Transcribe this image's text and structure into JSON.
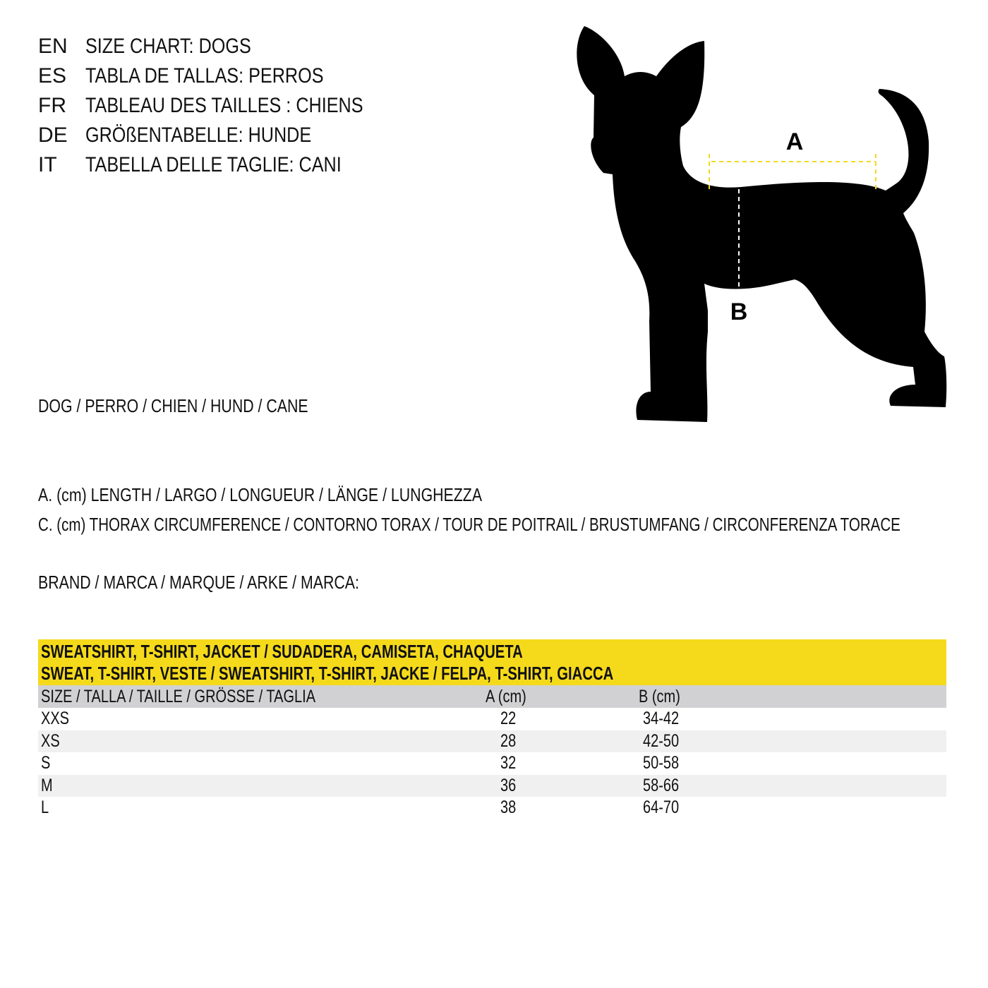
{
  "titles": [
    {
      "code": "EN",
      "text": "SIZE CHART: DOGS"
    },
    {
      "code": "ES",
      "text": "TABLA DE TALLAS: PERROS"
    },
    {
      "code": "FR",
      "text": "TABLEAU DES TAILLES : CHIENS"
    },
    {
      "code": "DE",
      "text": "GRÖßENTABELLE: HUNDE"
    },
    {
      "code": "IT",
      "text": "TABELLA DELLE TAGLIE: CANI"
    }
  ],
  "animal_label": "DOG / PERRO / CHIEN / HUND / CANE",
  "measure_a": "A. (cm) LENGTH / LARGO / LONGUEUR / LÄNGE / LUNGHEZZA",
  "measure_c": "C. (cm) THORAX CIRCUMFERENCE / CONTORNO TORAX / TOUR DE POITRAIL / BRUSTUMFANG / CIRCONFERENZA TORACE",
  "brand_label": "BRAND / MARCA / MARQUE / ARKE / MARCA:",
  "diagram": {
    "label_a": "A",
    "label_b": "B",
    "accent_color": "#f5da1b"
  },
  "table": {
    "title_line1": "SWEATSHIRT, T-SHIRT, JACKET / SUDADERA, CAMISETA, CHAQUETA",
    "title_line2": "SWEAT, T-SHIRT, VESTE / SWEATSHIRT, T-SHIRT, JACKE / FELPA, T-SHIRT, GIACCA",
    "headers": [
      "SIZE / TALLA / TAILLE / GRÖSSE / TAGLIA",
      "A (cm)",
      "B (cm)"
    ],
    "rows": [
      [
        "XXS",
        "22",
        "34-42"
      ],
      [
        "XS",
        "28",
        "42-50"
      ],
      [
        "S",
        "32",
        "50-58"
      ],
      [
        "M",
        "36",
        "58-66"
      ],
      [
        "L",
        "38",
        "64-70"
      ]
    ]
  }
}
